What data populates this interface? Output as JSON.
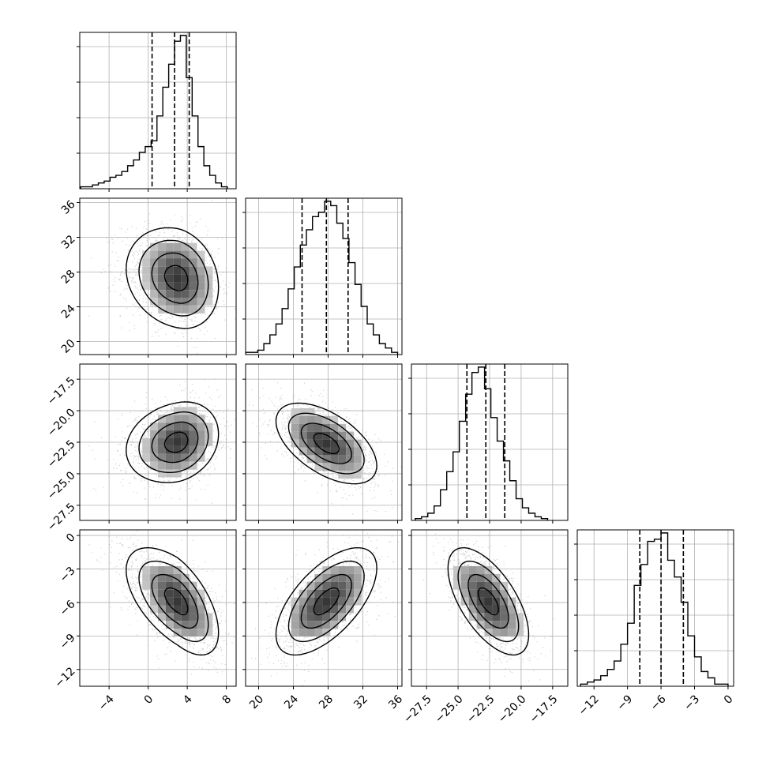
{
  "chart_data": {
    "type": "corner",
    "grid": true,
    "colors": {
      "line": "#000000",
      "grid": "#b0b0b0",
      "scatter": "#9a9a9a",
      "background": "#ffffff"
    },
    "parameters": [
      {
        "name": "",
        "lim": [
          -7,
          9
        ],
        "ticks": [
          -4,
          0,
          4,
          8
        ],
        "tick_labels": [
          "−4",
          "0",
          "4",
          "8"
        ],
        "quantiles": [
          0.4,
          2.7,
          4.2
        ]
      },
      {
        "name": "",
        "lim": [
          18.5,
          36.5
        ],
        "ticks": [
          20,
          24,
          28,
          32,
          36
        ],
        "tick_labels": [
          "20",
          "24",
          "28",
          "32",
          "36"
        ],
        "quantiles": [
          25.0,
          27.8,
          30.3
        ]
      },
      {
        "name": "",
        "lim": [
          -28.7,
          -16.3
        ],
        "ticks": [
          -27.5,
          -25.0,
          -22.5,
          -20.0,
          -17.5
        ],
        "tick_labels": [
          "−27.5",
          "−25.0",
          "−22.5",
          "−20.0",
          "−17.5"
        ],
        "quantiles": [
          -24.3,
          -22.8,
          -21.3
        ]
      },
      {
        "name": "",
        "lim": [
          -13.5,
          0.5
        ],
        "ticks": [
          -12,
          -9,
          -6,
          -3,
          0
        ],
        "tick_labels": [
          "−12",
          "−9",
          "−6",
          "−3",
          "0"
        ],
        "quantiles": [
          -7.9,
          -6.0,
          -4.0
        ]
      }
    ],
    "histograms": [
      {
        "param": 0,
        "bins": [
          -6.9,
          -6.3,
          -5.7,
          -5.1,
          -4.5,
          -3.9,
          -3.3,
          -2.7,
          -2.1,
          -1.5,
          -0.9,
          -0.3,
          0.3,
          0.9,
          1.5,
          2.1,
          2.7,
          3.3,
          3.9,
          4.5,
          5.1,
          5.7,
          6.3,
          6.9,
          7.5,
          8.1
        ],
        "counts": [
          1,
          1,
          2,
          3,
          4,
          6,
          7,
          9,
          12,
          15,
          19,
          22,
          25,
          38,
          53,
          65,
          77,
          80,
          58,
          38,
          22,
          12,
          7,
          3,
          1
        ]
      },
      {
        "param": 1,
        "bins": [
          18.5,
          19.2,
          19.9,
          20.6,
          21.3,
          22.0,
          22.7,
          23.4,
          24.1,
          24.8,
          25.5,
          26.2,
          26.9,
          27.6,
          28.3,
          29.0,
          29.7,
          30.4,
          31.1,
          31.8,
          32.5,
          33.2,
          33.9,
          34.6,
          35.3,
          36.0
        ],
        "counts": [
          1,
          1,
          2,
          5,
          9,
          14,
          21,
          30,
          40,
          50,
          57,
          63,
          65,
          70,
          68,
          60,
          53,
          42,
          32,
          22,
          14,
          9,
          5,
          3,
          1
        ]
      },
      {
        "param": 2,
        "bins": [
          -28.4,
          -27.9,
          -27.4,
          -26.9,
          -26.4,
          -25.9,
          -25.4,
          -24.9,
          -24.4,
          -23.9,
          -23.4,
          -22.9,
          -22.4,
          -21.9,
          -21.4,
          -20.9,
          -20.4,
          -19.9,
          -19.4,
          -18.9,
          -18.4,
          -17.9
        ],
        "counts": [
          1,
          2,
          4,
          8,
          17,
          27,
          38,
          55,
          70,
          82,
          85,
          73,
          57,
          44,
          33,
          22,
          12,
          7,
          4,
          2,
          1
        ]
      },
      {
        "param": 3,
        "bins": [
          -13.2,
          -12.6,
          -12.0,
          -11.4,
          -10.8,
          -10.2,
          -9.6,
          -9.0,
          -8.4,
          -7.8,
          -7.2,
          -6.6,
          -6.0,
          -5.4,
          -4.8,
          -4.2,
          -3.6,
          -3.0,
          -2.4,
          -1.8,
          -1.2,
          -0.6,
          0.0
        ],
        "counts": [
          1,
          2,
          3,
          5,
          8,
          12,
          20,
          30,
          48,
          58,
          69,
          70,
          73,
          60,
          52,
          40,
          24,
          14,
          7,
          4,
          1,
          1
        ]
      }
    ],
    "pairs": [
      {
        "x_param": 0,
        "y_param": 1,
        "center": [
          3.0,
          27.3
        ],
        "sigma": [
          2.1,
          2.9
        ],
        "rho": -0.18,
        "skew_x": -1
      },
      {
        "x_param": 0,
        "y_param": 2,
        "center": [
          3.0,
          -22.5
        ],
        "sigma": [
          2.1,
          1.6
        ],
        "rho": 0.2,
        "skew_x": -1
      },
      {
        "x_param": 1,
        "y_param": 2,
        "center": [
          27.8,
          -22.6
        ],
        "sigma": [
          2.9,
          1.6
        ],
        "rho": -0.55,
        "skew_x": 0
      },
      {
        "x_param": 0,
        "y_param": 3,
        "center": [
          3.0,
          -5.9
        ],
        "sigma": [
          2.1,
          2.4
        ],
        "rho": -0.58,
        "skew_x": -1
      },
      {
        "x_param": 1,
        "y_param": 3,
        "center": [
          27.8,
          -5.9
        ],
        "sigma": [
          2.9,
          2.4
        ],
        "rho": 0.62,
        "skew_x": 0
      },
      {
        "x_param": 2,
        "y_param": 3,
        "center": [
          -22.6,
          -5.9
        ],
        "sigma": [
          1.6,
          2.4
        ],
        "rho": -0.62,
        "skew_x": 0
      }
    ],
    "contour_levels_sigma": [
      0.5,
      1.0,
      1.5,
      2.0
    ]
  }
}
